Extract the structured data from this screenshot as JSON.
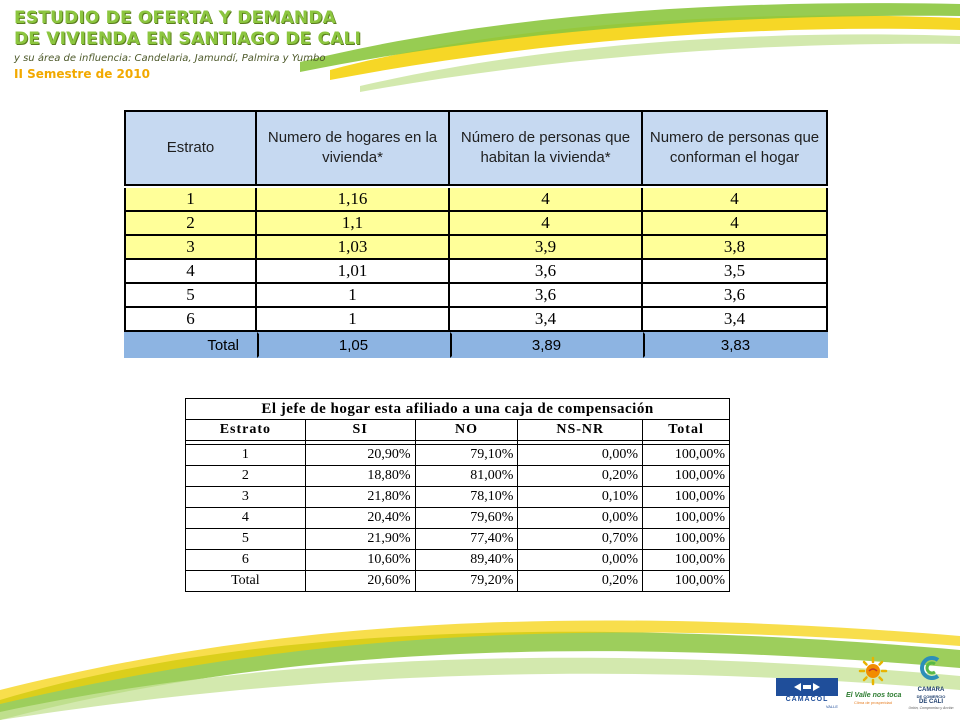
{
  "header": {
    "title_line1": "ESTUDIO DE OFERTA Y DEMANDA",
    "title_line2": "DE VIVIENDA EN SANTIAGO DE CALI",
    "subtitle": "y su área de influencia: Candelaria, Jamundí, Palmira y Yumbo",
    "semester": "II Semestre de 2010"
  },
  "table1": {
    "headers": [
      "Estrato",
      "Numero de hogares en la vivienda*",
      "Número de personas que habitan la vivienda*",
      "Numero de personas que conforman el hogar"
    ],
    "rows": [
      [
        "1",
        "1,16",
        "4",
        "4"
      ],
      [
        "2",
        "1,1",
        "4",
        "4"
      ],
      [
        "3",
        "1,03",
        "3,9",
        "3,8"
      ],
      [
        "4",
        "1,01",
        "3,6",
        "3,5"
      ],
      [
        "5",
        "1",
        "3,6",
        "3,6"
      ],
      [
        "6",
        "1",
        "3,4",
        "3,4"
      ]
    ],
    "total": [
      "Total",
      "1,05",
      "3,89",
      "3,83"
    ]
  },
  "table2": {
    "title": "El jefe de hogar esta afiliado a una caja de compensación",
    "headers": [
      "Estrato",
      "SI",
      "NO",
      "NS-NR",
      "Total"
    ],
    "rows": [
      [
        "1",
        "20,90%",
        "79,10%",
        "0,00%",
        "100,00%"
      ],
      [
        "2",
        "18,80%",
        "81,00%",
        "0,20%",
        "100,00%"
      ],
      [
        "3",
        "21,80%",
        "78,10%",
        "0,10%",
        "100,00%"
      ],
      [
        "4",
        "20,40%",
        "79,60%",
        "0,00%",
        "100,00%"
      ],
      [
        "5",
        "21,90%",
        "77,40%",
        "0,70%",
        "100,00%"
      ],
      [
        "6",
        "10,60%",
        "89,40%",
        "0,00%",
        "100,00%"
      ],
      [
        "Total",
        "20,60%",
        "79,20%",
        "0,20%",
        "100,00%"
      ]
    ]
  },
  "logos": {
    "camacol": "CAMACOL",
    "camacol_sub": "VALLE",
    "valle": "El Valle nos toca",
    "valle_sub": "Clima de prosperidad",
    "camara_line1": "CAMARA",
    "camara_line2": "DE COMERCIO",
    "camara_line3": "DE CALI",
    "camara_sub": "Unión, Compromiso y Acción"
  },
  "colors": {
    "title_green": "#8cc63f",
    "semester_orange": "#f2a900",
    "header_blue": "#c6d9f1",
    "total_blue": "#8db4e2",
    "row_yellow": "#ffff99"
  }
}
